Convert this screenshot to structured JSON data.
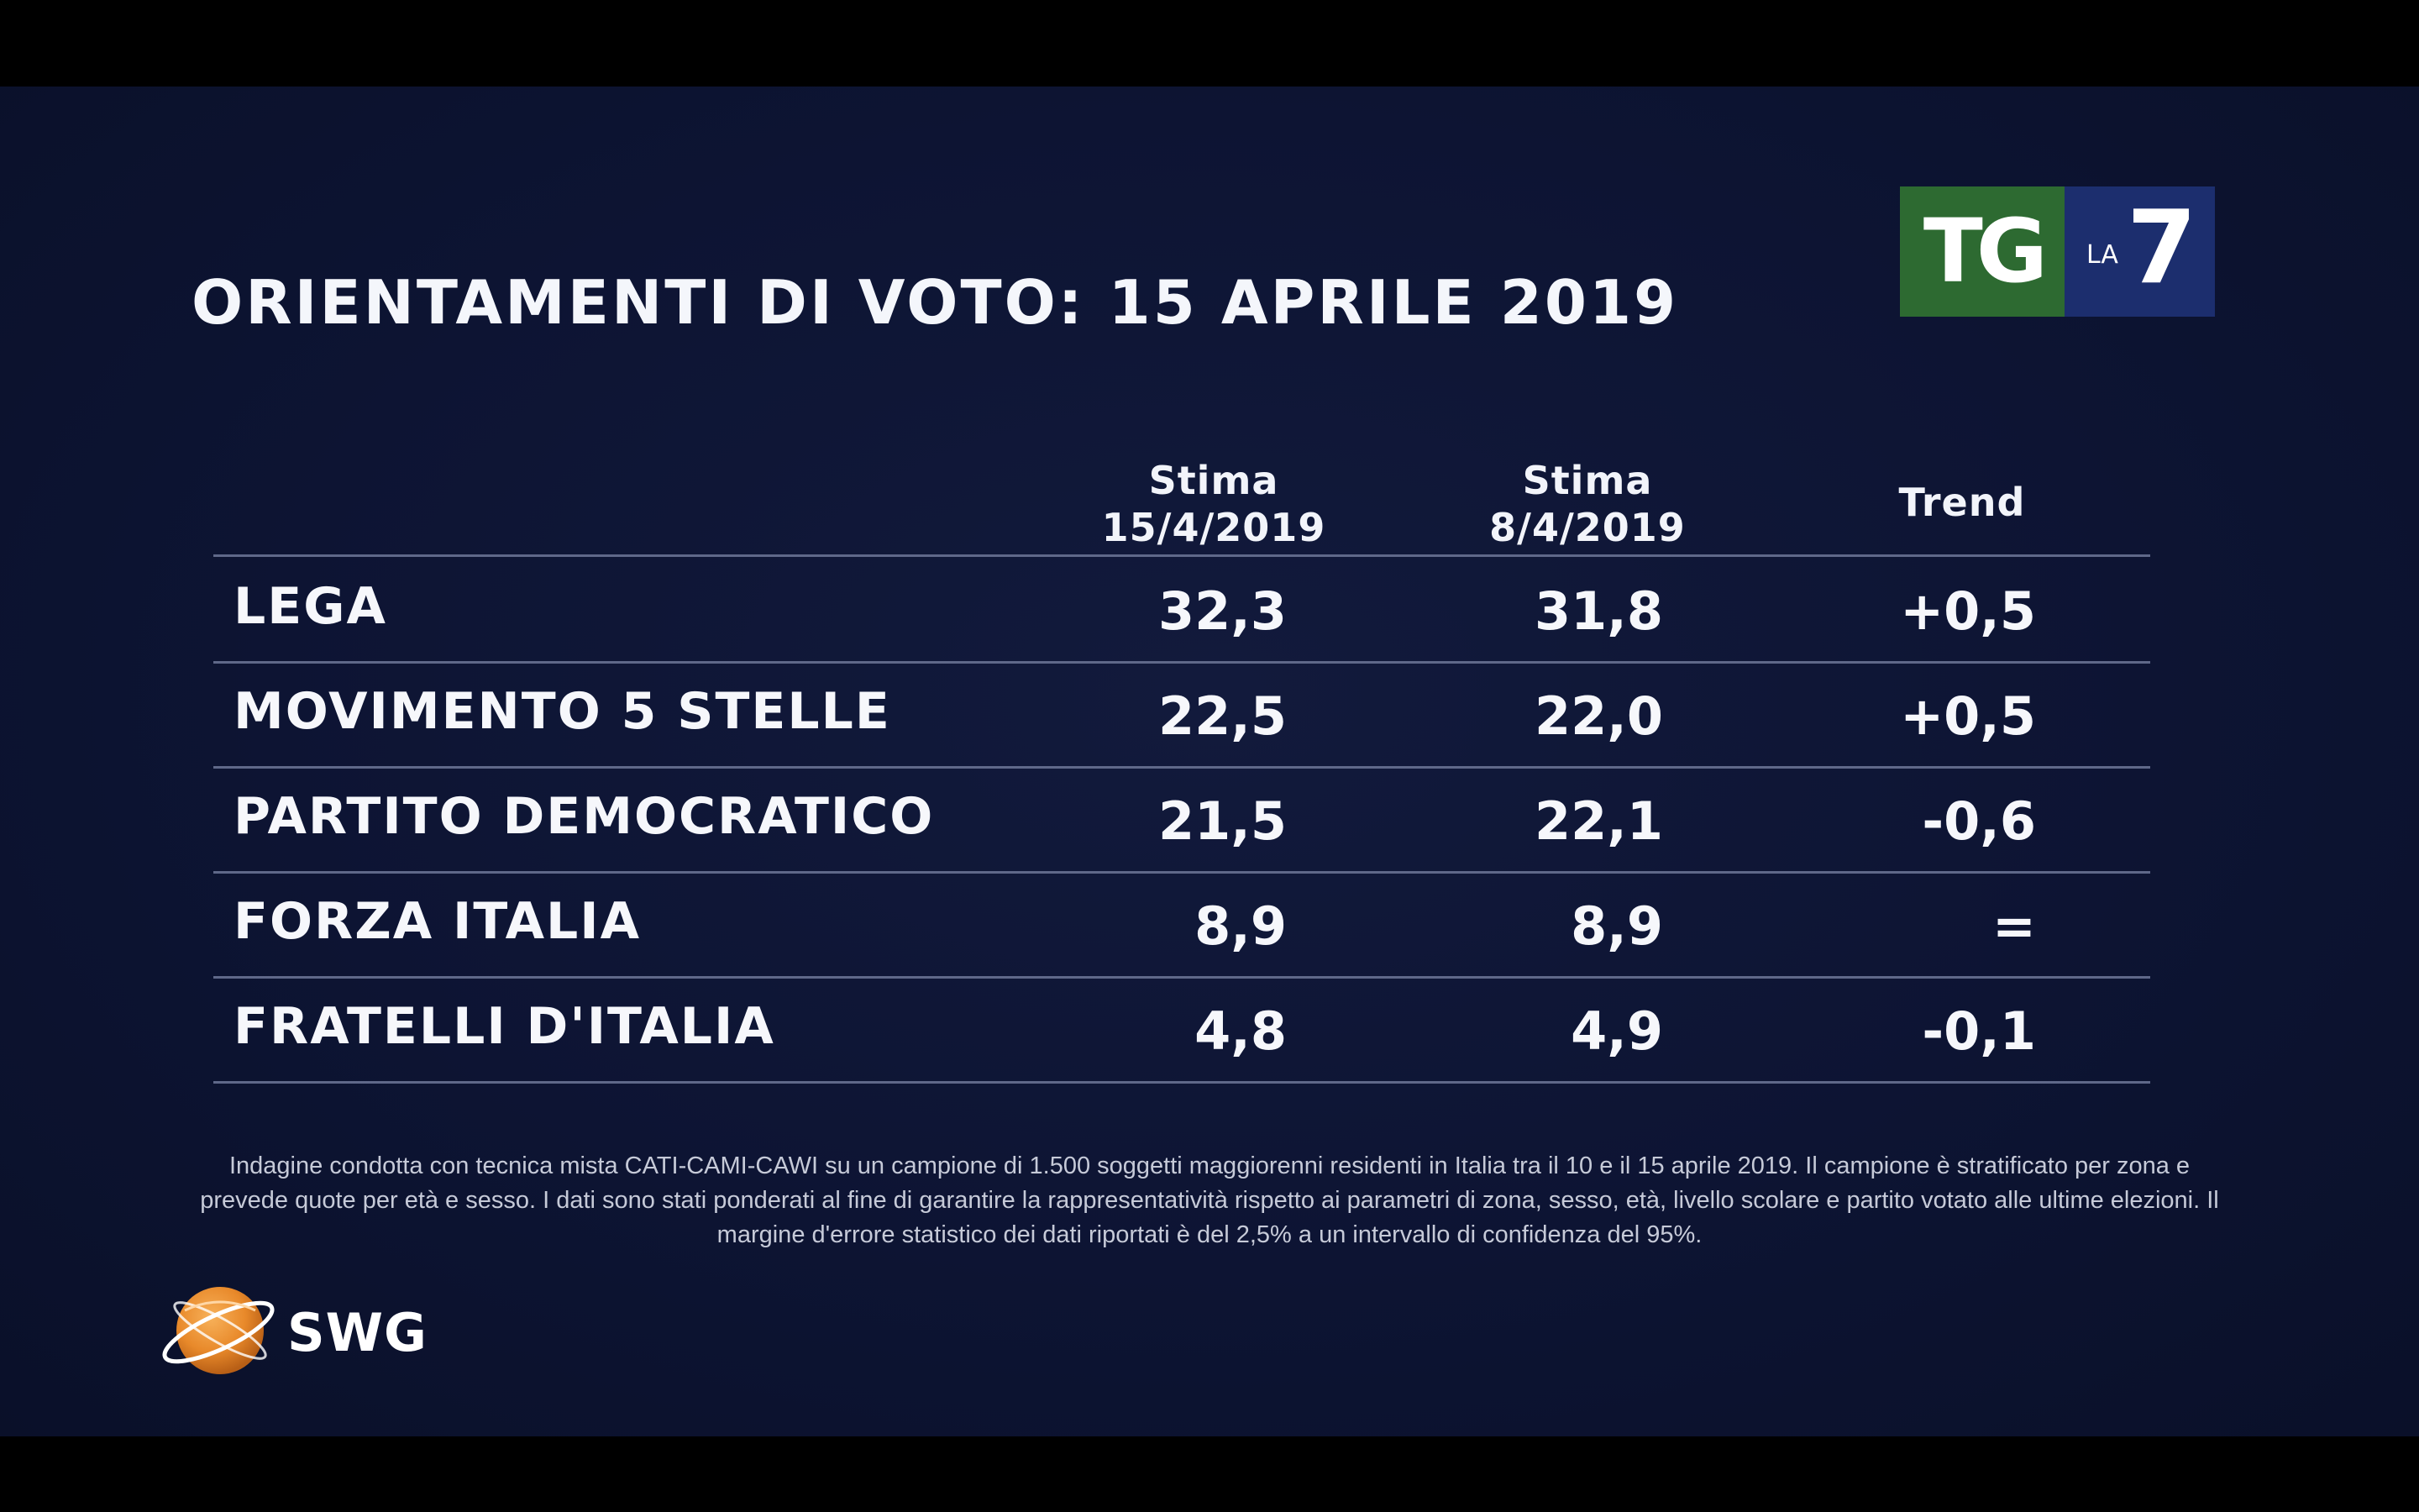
{
  "title": "ORIENTAMENTI DI VOTO: 15 APRILE 2019",
  "logos": {
    "tg": "TG",
    "la": "LA",
    "seven": "7",
    "swg": "SWG"
  },
  "colors": {
    "background": "#0d1433",
    "tg_green": "#2d6a31",
    "la7_blue": "#1c2e6e",
    "swg_orange": "#e8892a",
    "rule": "#5f6889"
  },
  "chart_data": {
    "type": "table",
    "title": "ORIENTAMENTI DI VOTO: 15 APRILE 2019",
    "columns": [
      {
        "line1": "Stima",
        "line2": "15/4/2019"
      },
      {
        "line1": "Stima",
        "line2": "8/4/2019"
      },
      {
        "line1": "Trend",
        "line2": ""
      }
    ],
    "rows": [
      {
        "party": "LEGA",
        "current": "32,3",
        "previous": "31,8",
        "trend": "+0,5"
      },
      {
        "party": "MOVIMENTO 5 STELLE",
        "current": "22,5",
        "previous": "22,0",
        "trend": "+0,5"
      },
      {
        "party": "PARTITO DEMOCRATICO",
        "current": "21,5",
        "previous": "22,1",
        "trend": "-0,6"
      },
      {
        "party": "FORZA ITALIA",
        "current": "8,9",
        "previous": "8,9",
        "trend": "="
      },
      {
        "party": "FRATELLI D'ITALIA",
        "current": "4,8",
        "previous": "4,9",
        "trend": "-0,1"
      }
    ]
  },
  "footnote": "Indagine condotta con tecnica mista CATI-CAMI-CAWI su un campione di 1.500 soggetti maggiorenni residenti in Italia tra il 10 e il 15 aprile 2019. Il campione è stratificato per zona e prevede quote per età e sesso. I dati sono stati ponderati al fine di garantire la rappresentatività rispetto ai parametri di zona, sesso, età, livello scolare e partito votato alle ultime elezioni. Il margine d'errore statistico dei dati riportati è del 2,5% a un intervallo di confidenza del 95%."
}
